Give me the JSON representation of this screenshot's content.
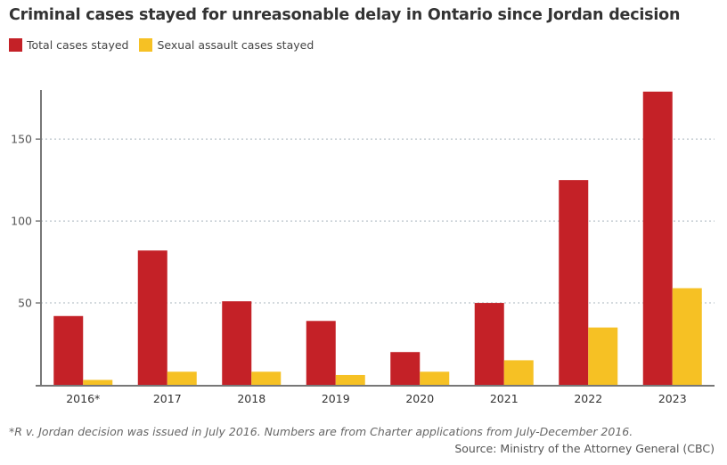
{
  "chart_data": {
    "type": "bar",
    "title": "Criminal cases stayed for unreasonable delay in Ontario since Jordan decision",
    "xlabel": "",
    "ylabel": "",
    "categories": [
      "2016*",
      "2017",
      "2018",
      "2019",
      "2020",
      "2021",
      "2022",
      "2023"
    ],
    "series": [
      {
        "name": "Total cases stayed",
        "color": "#c42127",
        "values": [
          42,
          82,
          51,
          39,
          20,
          50,
          125,
          179
        ]
      },
      {
        "name": "Sexual assault cases stayed",
        "color": "#f6c124",
        "values": [
          3,
          8,
          8,
          6,
          8,
          15,
          35,
          59
        ]
      }
    ],
    "ylim": [
      0,
      180
    ],
    "yticks": [
      50,
      100,
      150
    ],
    "ytick_labels": [
      "50",
      "100",
      "150"
    ],
    "grid": true,
    "legend": "top-left",
    "footnote": "*R v. Jordan decision was issued in July 2016. Numbers are from Charter applications from July-December 2016.",
    "source": "Source: Ministry of the Attorney General (CBC)"
  }
}
